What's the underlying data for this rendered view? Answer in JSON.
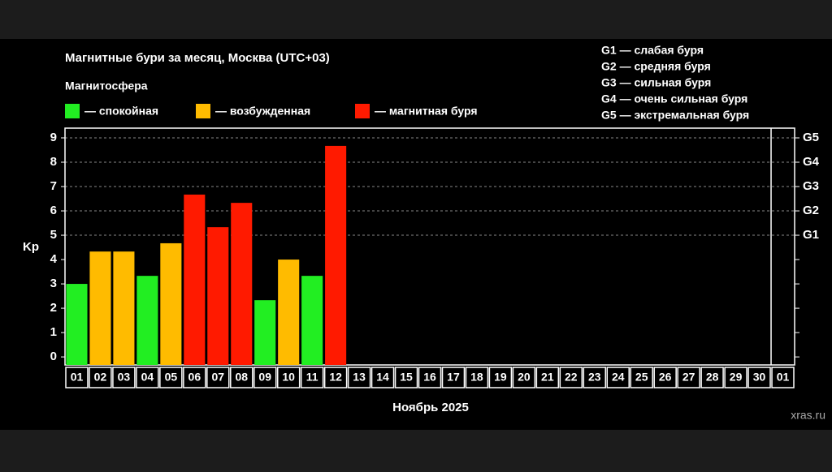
{
  "chart_data": {
    "type": "bar",
    "title": "Магнитные бури за месяц, Москва (UTC+03)",
    "subtitle": "Магнитосфера",
    "legend": [
      {
        "color": "#22ee22",
        "label": "— спокойная"
      },
      {
        "color": "#ffbb00",
        "label": "— возбужденная"
      },
      {
        "color": "#ff1a00",
        "label": "— магнитная буря"
      }
    ],
    "storm_scale": [
      "G1 — слабая буря",
      "G2 — средняя буря",
      "G3 — сильная буря",
      "G4 — очень сильная буря",
      "G5 — экстремальная буря"
    ],
    "ylabel": "Kp",
    "xlabel": "Ноябрь 2025",
    "source": "xras.ru",
    "categories": [
      "01",
      "02",
      "03",
      "04",
      "05",
      "06",
      "07",
      "08",
      "09",
      "10",
      "11",
      "12",
      "13",
      "14",
      "15",
      "16",
      "17",
      "18",
      "19",
      "20",
      "21",
      "22",
      "23",
      "24",
      "25",
      "26",
      "27",
      "28",
      "29",
      "30",
      "01"
    ],
    "values": [
      3.0,
      4.33,
      4.33,
      3.33,
      4.67,
      6.67,
      5.33,
      6.33,
      2.33,
      4.0,
      3.33,
      8.67,
      null,
      null,
      null,
      null,
      null,
      null,
      null,
      null,
      null,
      null,
      null,
      null,
      null,
      null,
      null,
      null,
      null,
      null,
      null
    ],
    "colors": [
      "#22ee22",
      "#ffbb00",
      "#ffbb00",
      "#22ee22",
      "#ffbb00",
      "#ff1a00",
      "#ff1a00",
      "#ff1a00",
      "#22ee22",
      "#ffbb00",
      "#22ee22",
      "#ff1a00",
      null,
      null,
      null,
      null,
      null,
      null,
      null,
      null,
      null,
      null,
      null,
      null,
      null,
      null,
      null,
      null,
      null,
      null,
      null
    ],
    "ylim": [
      -0.33,
      9.4
    ],
    "yticks": [
      0,
      1,
      2,
      3,
      4,
      5,
      6,
      7,
      8,
      9
    ],
    "y2lim": [
      -0.33,
      9.4
    ],
    "y2ticks": [
      {
        "value": 5,
        "label": "G1"
      },
      {
        "value": 6,
        "label": "G2"
      },
      {
        "value": 7,
        "label": "G3"
      },
      {
        "value": 8,
        "label": "G4"
      },
      {
        "value": 9,
        "label": "G5"
      }
    ],
    "grid": true
  }
}
